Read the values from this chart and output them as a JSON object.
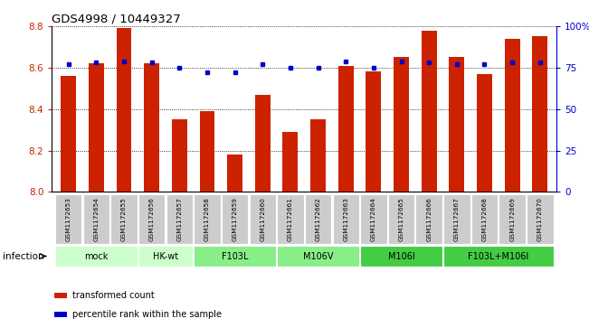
{
  "title": "GDS4998 / 10449327",
  "samples": [
    "GSM1172653",
    "GSM1172654",
    "GSM1172655",
    "GSM1172656",
    "GSM1172657",
    "GSM1172658",
    "GSM1172659",
    "GSM1172660",
    "GSM1172661",
    "GSM1172662",
    "GSM1172663",
    "GSM1172664",
    "GSM1172665",
    "GSM1172666",
    "GSM1172667",
    "GSM1172668",
    "GSM1172669",
    "GSM1172670"
  ],
  "bar_values": [
    8.56,
    8.62,
    8.79,
    8.62,
    8.35,
    8.39,
    8.18,
    8.47,
    8.29,
    8.35,
    8.61,
    8.58,
    8.65,
    8.78,
    8.65,
    8.57,
    8.74,
    8.75
  ],
  "dot_values": [
    77,
    78,
    79,
    78,
    75,
    72,
    72,
    77,
    75,
    75,
    79,
    75,
    79,
    78,
    77,
    77,
    78,
    78
  ],
  "groups": [
    {
      "label": "mock",
      "start": 0,
      "end": 2,
      "color": "#ccffcc"
    },
    {
      "label": "HK-wt",
      "start": 3,
      "end": 4,
      "color": "#ccffcc"
    },
    {
      "label": "F103L",
      "start": 5,
      "end": 7,
      "color": "#88ee88"
    },
    {
      "label": "M106V",
      "start": 8,
      "end": 10,
      "color": "#88ee88"
    },
    {
      "label": "M106I",
      "start": 11,
      "end": 13,
      "color": "#44cc44"
    },
    {
      "label": "F103L+M106I",
      "start": 14,
      "end": 17,
      "color": "#44cc44"
    }
  ],
  "ylim_left": [
    8.0,
    8.8
  ],
  "ylim_right": [
    0,
    100
  ],
  "yticks_left": [
    8.0,
    8.2,
    8.4,
    8.6,
    8.8
  ],
  "yticks_right": [
    0,
    25,
    50,
    75,
    100
  ],
  "yticklabels_right": [
    "0",
    "25",
    "50",
    "75",
    "100%"
  ],
  "bar_color": "#cc2200",
  "dot_color": "#0000cc",
  "bar_width": 0.55,
  "legend_transformed": "transformed count",
  "legend_percentile": "percentile rank within the sample",
  "infection_label": "infection",
  "sample_bg_color": "#cccccc",
  "figsize": [
    6.51,
    3.63
  ],
  "dpi": 100
}
